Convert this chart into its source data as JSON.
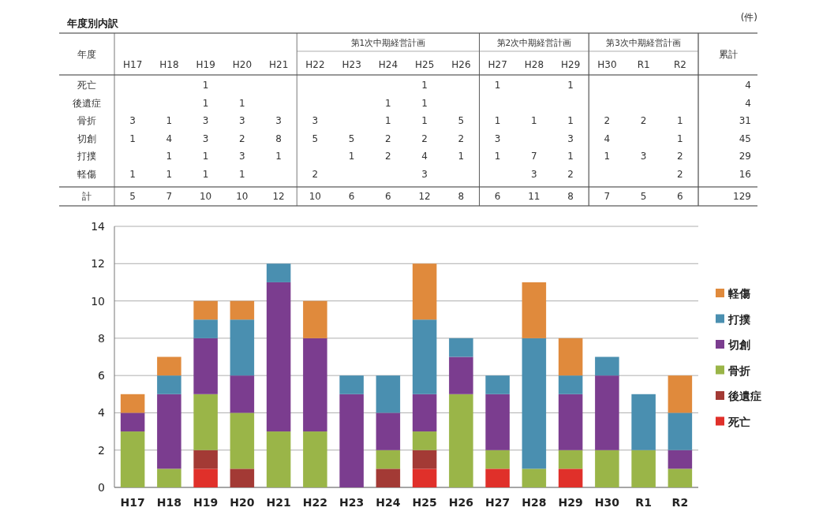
{
  "chart_data": {
    "type": "bar",
    "stacked": true,
    "title": "年度別内訳",
    "categories": [
      "H17",
      "H18",
      "H19",
      "H20",
      "H21",
      "H22",
      "H23",
      "H24",
      "H25",
      "H26",
      "H27",
      "H28",
      "H29",
      "H30",
      "R1",
      "R2"
    ],
    "series": [
      {
        "name": "死亡",
        "color": "#e0302a",
        "values": [
          0,
          0,
          1,
          0,
          0,
          0,
          0,
          0,
          1,
          0,
          1,
          0,
          1,
          0,
          0,
          0
        ],
        "value_labels": [
          null,
          null,
          "1",
          null,
          null,
          null,
          null,
          null,
          "1",
          null,
          "1",
          null,
          "1",
          null,
          null,
          null
        ]
      },
      {
        "name": "後遺症",
        "color": "#a33a35",
        "values": [
          0,
          0,
          1,
          1,
          0,
          0,
          0,
          1,
          1,
          0,
          0,
          0,
          0,
          0,
          0,
          0
        ],
        "value_labels": [
          null,
          null,
          "1",
          "1",
          null,
          null,
          null,
          "1",
          "1",
          null,
          null,
          null,
          null,
          null,
          null,
          null
        ]
      },
      {
        "name": "骨折",
        "color": "#9ab548",
        "values": [
          3,
          1,
          3,
          3,
          3,
          3,
          0,
          1,
          1,
          5,
          1,
          1,
          1,
          2,
          2,
          1
        ],
        "value_labels": [
          "3",
          "1",
          "3",
          "3",
          "3",
          "3",
          null,
          "1",
          "1",
          "5",
          "1",
          "1",
          "1",
          "2",
          "2",
          "1"
        ]
      },
      {
        "name": "切創",
        "color": "#7b3d8f",
        "values": [
          1,
          4,
          3,
          2,
          8,
          5,
          5,
          2,
          2,
          2,
          3,
          0,
          3,
          4,
          0,
          1
        ],
        "value_labels": [
          "1",
          "4",
          "3",
          "2",
          "8",
          "5",
          "5",
          "2",
          "2",
          "2",
          "3",
          null,
          "3",
          "4",
          null,
          "1"
        ]
      },
      {
        "name": "打撲",
        "color": "#4a8fb0",
        "values": [
          0,
          1,
          1,
          3,
          1,
          0,
          1,
          2,
          4,
          1,
          1,
          7,
          1,
          1,
          3,
          2
        ],
        "value_labels": [
          null,
          "1",
          "1",
          "3",
          "1",
          null,
          "1",
          "2",
          "4",
          "1",
          "1",
          "7",
          "1",
          "1",
          "3",
          "2"
        ]
      },
      {
        "name": "軽傷",
        "color": "#e08a3c",
        "values": [
          1,
          1,
          1,
          1,
          0,
          2,
          0,
          0,
          3,
          0,
          0,
          3,
          2,
          0,
          0,
          2
        ],
        "value_labels": [
          "1",
          "1",
          "1",
          "1",
          null,
          "2",
          null,
          null,
          "3",
          null,
          null,
          "3",
          "2",
          null,
          null,
          "2"
        ]
      }
    ],
    "annotations": [
      "(件)",
      "計",
      "累計",
      "4",
      "4",
      "31",
      "45",
      "29",
      "16",
      "129",
      "第1次中期経営計画",
      "第2次中期経営計画",
      "第3次中期経営計画",
      "年度",
      "5",
      "7",
      "10",
      "10",
      "12",
      "10",
      "6",
      "6",
      "12",
      "8",
      "6",
      "11",
      "8",
      "7",
      "5",
      "6"
    ],
    "ylim": [
      0,
      14
    ],
    "yticks": [
      0,
      2,
      4,
      6,
      8,
      10,
      12,
      14
    ],
    "grid": "y",
    "legend": "right"
  }
}
